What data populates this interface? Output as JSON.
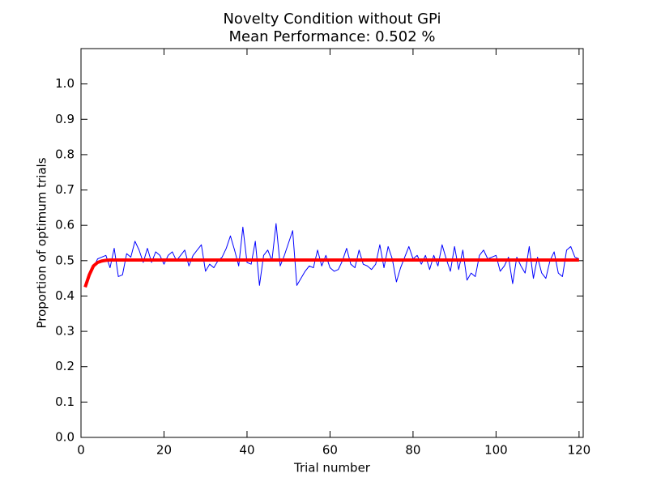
{
  "chart_data": {
    "type": "line",
    "title": "Novelty Condition without GPi",
    "subtitle": "Mean Performance: 0.502 %",
    "xlabel": "Trial number",
    "ylabel": "Proportion of optimum trials",
    "x": [
      1,
      2,
      3,
      4,
      5,
      6,
      7,
      8,
      9,
      10,
      11,
      12,
      13,
      14,
      15,
      16,
      17,
      18,
      19,
      20,
      21,
      22,
      23,
      24,
      25,
      26,
      27,
      28,
      29,
      30,
      31,
      32,
      33,
      34,
      35,
      36,
      37,
      38,
      39,
      40,
      41,
      42,
      43,
      44,
      45,
      46,
      47,
      48,
      49,
      50,
      51,
      52,
      53,
      54,
      55,
      56,
      57,
      58,
      59,
      60,
      61,
      62,
      63,
      64,
      65,
      66,
      67,
      68,
      69,
      70,
      71,
      72,
      73,
      74,
      75,
      76,
      77,
      78,
      79,
      80,
      81,
      82,
      83,
      84,
      85,
      86,
      87,
      88,
      89,
      90,
      91,
      92,
      93,
      94,
      95,
      96,
      97,
      98,
      99,
      100,
      101,
      102,
      103,
      104,
      105,
      106,
      107,
      108,
      109,
      110,
      111,
      112,
      113,
      114,
      115,
      116,
      117,
      118,
      119,
      120
    ],
    "series": [
      {
        "color": "#0000ff",
        "width": 1,
        "values": [
          0.43,
          0.46,
          0.48,
          0.505,
          0.51,
          0.515,
          0.48,
          0.535,
          0.455,
          0.46,
          0.52,
          0.51,
          0.555,
          0.53,
          0.495,
          0.535,
          0.495,
          0.525,
          0.515,
          0.49,
          0.515,
          0.525,
          0.5,
          0.515,
          0.53,
          0.485,
          0.515,
          0.53,
          0.545,
          0.47,
          0.49,
          0.48,
          0.5,
          0.51,
          0.535,
          0.57,
          0.53,
          0.485,
          0.595,
          0.495,
          0.49,
          0.555,
          0.43,
          0.515,
          0.53,
          0.5,
          0.605,
          0.485,
          0.515,
          0.55,
          0.585,
          0.43,
          0.45,
          0.47,
          0.485,
          0.48,
          0.53,
          0.485,
          0.515,
          0.48,
          0.47,
          0.475,
          0.5,
          0.535,
          0.49,
          0.48,
          0.53,
          0.49,
          0.485,
          0.475,
          0.49,
          0.545,
          0.48,
          0.54,
          0.505,
          0.44,
          0.48,
          0.51,
          0.54,
          0.505,
          0.515,
          0.49,
          0.515,
          0.475,
          0.515,
          0.485,
          0.545,
          0.505,
          0.47,
          0.54,
          0.475,
          0.53,
          0.445,
          0.465,
          0.455,
          0.515,
          0.53,
          0.505,
          0.51,
          0.515,
          0.47,
          0.485,
          0.51,
          0.435,
          0.51,
          0.485,
          0.465,
          0.54,
          0.45,
          0.51,
          0.465,
          0.45,
          0.5,
          0.525,
          0.465,
          0.455,
          0.53,
          0.54,
          0.51,
          0.505
        ]
      },
      {
        "color": "#ff0000",
        "width": 4,
        "values": [
          0.425,
          0.46,
          0.485,
          0.495,
          0.499,
          0.501,
          0.502,
          0.502,
          0.502,
          0.502,
          0.502,
          0.502,
          0.502,
          0.502,
          0.502,
          0.502,
          0.502,
          0.502,
          0.502,
          0.502,
          0.502,
          0.502,
          0.502,
          0.502,
          0.502,
          0.502,
          0.502,
          0.502,
          0.502,
          0.502,
          0.502,
          0.502,
          0.502,
          0.502,
          0.502,
          0.502,
          0.502,
          0.502,
          0.502,
          0.502,
          0.502,
          0.502,
          0.502,
          0.502,
          0.502,
          0.502,
          0.502,
          0.502,
          0.502,
          0.502,
          0.502,
          0.502,
          0.502,
          0.502,
          0.502,
          0.502,
          0.502,
          0.502,
          0.502,
          0.502,
          0.502,
          0.502,
          0.502,
          0.502,
          0.502,
          0.502,
          0.502,
          0.502,
          0.502,
          0.502,
          0.502,
          0.502,
          0.502,
          0.502,
          0.502,
          0.502,
          0.502,
          0.502,
          0.502,
          0.502,
          0.502,
          0.502,
          0.502,
          0.502,
          0.502,
          0.502,
          0.502,
          0.502,
          0.502,
          0.502,
          0.502,
          0.502,
          0.502,
          0.502,
          0.502,
          0.502,
          0.502,
          0.502,
          0.502,
          0.502,
          0.502,
          0.502,
          0.502,
          0.502,
          0.502,
          0.502,
          0.502,
          0.502,
          0.502,
          0.502,
          0.502,
          0.502,
          0.502,
          0.502,
          0.502,
          0.502,
          0.502,
          0.502,
          0.502,
          0.502
        ]
      }
    ],
    "xlim": [
      0,
      121
    ],
    "xticks": [
      0,
      20,
      40,
      60,
      80,
      100,
      120
    ],
    "ylim": [
      0,
      1.1
    ],
    "yticks": [
      {
        "value": 0,
        "label": "0.0"
      },
      0.1,
      0.2,
      0.3,
      0.4,
      0.5,
      0.6,
      0.7,
      0.8,
      0.9,
      {
        "value": 1,
        "label": "1.0"
      }
    ],
    "grid": false
  }
}
